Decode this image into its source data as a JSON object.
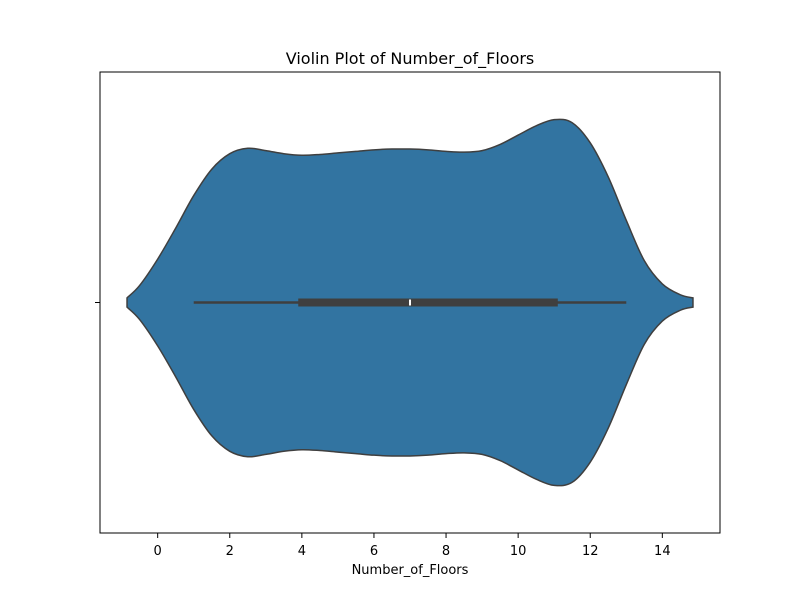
{
  "chart_data": {
    "type": "violin",
    "title": "Violin Plot of Number_of_Floors",
    "xlabel": "Number_of_Floors",
    "ylabel": "",
    "xlim": [
      -1.6,
      15.6
    ],
    "xticks": [
      0,
      2,
      4,
      6,
      8,
      10,
      12,
      14
    ],
    "xtick_labels": [
      "0",
      "2",
      "4",
      "6",
      "8",
      "10",
      "12",
      "14"
    ],
    "grid": false,
    "legend": "none",
    "violin_color": "#3274a1",
    "edge_color": "#3f3f3f",
    "box": {
      "min": 1,
      "q1": 3.9,
      "median": 7,
      "q3": 11.1,
      "max": 13
    },
    "density_profile": {
      "x": [
        -0.85,
        -0.5,
        0,
        0.5,
        1,
        1.5,
        2,
        2.5,
        3,
        3.5,
        4,
        4.5,
        5,
        5.5,
        6,
        6.5,
        7,
        7.5,
        8,
        8.5,
        9,
        9.5,
        10,
        10.5,
        11,
        11.5,
        12,
        12.5,
        13,
        13.5,
        14,
        14.5,
        14.85
      ],
      "half_width": [
        0.03,
        0.11,
        0.28,
        0.48,
        0.69,
        0.86,
        0.96,
        0.995,
        0.98,
        0.96,
        0.95,
        0.955,
        0.965,
        0.975,
        0.985,
        0.99,
        0.99,
        0.985,
        0.975,
        0.97,
        0.98,
        1.02,
        1.08,
        1.14,
        1.18,
        1.16,
        1.03,
        0.81,
        0.53,
        0.27,
        0.12,
        0.05,
        0.03
      ]
    }
  }
}
